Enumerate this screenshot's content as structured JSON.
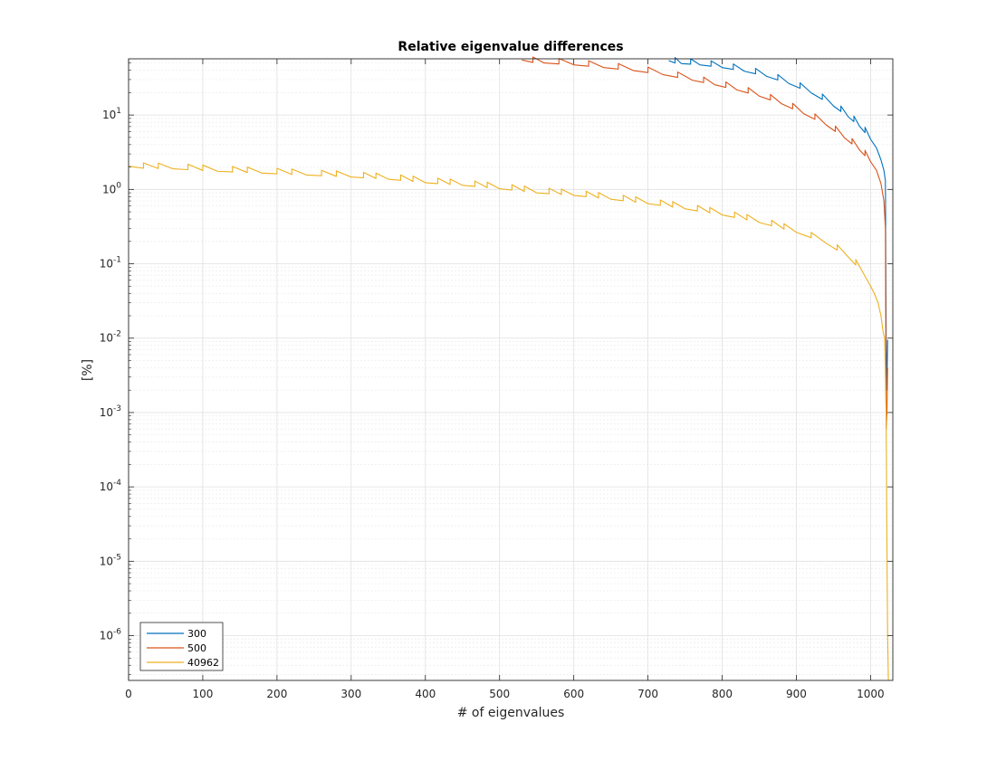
{
  "chart_data": {
    "type": "line",
    "title": "Relative eigenvalue differences",
    "xlabel": "# of eigenvalues",
    "ylabel": "[%]",
    "xlim": [
      0,
      1030
    ],
    "ylim": [
      2.5e-07,
      57
    ],
    "yscale": "log",
    "grid": true,
    "minor_grid": true,
    "legend_position": "bottom-left",
    "x_ticks": [
      0,
      100,
      200,
      300,
      400,
      500,
      600,
      700,
      800,
      900,
      1000
    ],
    "y_ticks": [
      {
        "value": 1e-06,
        "base": "10",
        "exp": "-6"
      },
      {
        "value": 1e-05,
        "base": "10",
        "exp": "-5"
      },
      {
        "value": 0.0001,
        "base": "10",
        "exp": "-4"
      },
      {
        "value": 0.001,
        "base": "10",
        "exp": "-3"
      },
      {
        "value": 0.01,
        "base": "10",
        "exp": "-2"
      },
      {
        "value": 0.1,
        "base": "10",
        "exp": "-1"
      },
      {
        "value": 1,
        "base": "10",
        "exp": "0"
      },
      {
        "value": 10,
        "base": "10",
        "exp": "1"
      }
    ],
    "series": [
      {
        "name": "300",
        "color": "#0072BD",
        "x": [
          728,
          745,
          770,
          800,
          830,
          860,
          890,
          920,
          950,
          970,
          985,
          1000,
          1008,
          1014,
          1018,
          1020,
          1021,
          1022,
          1023
        ],
        "y": [
          54,
          52,
          50,
          46,
          41,
          35,
          28,
          21,
          14,
          10,
          7.5,
          5,
          3.6,
          2.5,
          1.8,
          1.3,
          0.01,
          0.002,
          0.0095
        ]
      },
      {
        "name": "500",
        "color": "#D95319",
        "x": [
          530,
          560,
          600,
          640,
          680,
          720,
          760,
          790,
          820,
          850,
          880,
          910,
          940,
          965,
          985,
          1000,
          1008,
          1014,
          1018,
          1020,
          1021,
          1022,
          1023
        ],
        "y": [
          55,
          53,
          50,
          46,
          42,
          37,
          31,
          27,
          23,
          19,
          15,
          11,
          7.8,
          5.2,
          3.6,
          2.5,
          1.8,
          1.2,
          0.7,
          0.3,
          0.0006,
          0.001,
          0.004
        ]
      },
      {
        "name": "40962",
        "color": "#EDB120",
        "x": [
          0,
          60,
          120,
          180,
          240,
          300,
          350,
          400,
          450,
          500,
          550,
          600,
          650,
          700,
          750,
          800,
          850,
          900,
          940,
          970,
          990,
          1000,
          1005,
          1010,
          1014,
          1017,
          1019,
          1020,
          1021,
          1022,
          1023,
          1024
        ],
        "y": [
          2.05,
          2.0,
          1.85,
          1.75,
          1.65,
          1.55,
          1.45,
          1.3,
          1.2,
          1.08,
          0.95,
          0.88,
          0.78,
          0.68,
          0.58,
          0.48,
          0.38,
          0.28,
          0.2,
          0.13,
          0.08,
          0.05,
          0.04,
          0.03,
          0.02,
          0.012,
          0.01,
          0.003,
          0.0009,
          2e-05,
          1e-06,
          2.5e-07
        ]
      }
    ]
  }
}
